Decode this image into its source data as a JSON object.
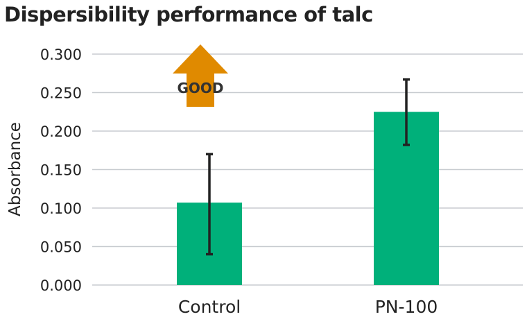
{
  "chart_data": {
    "type": "bar",
    "title": "Dispersibility performance of talc",
    "xlabel": "",
    "ylabel": "Absorbance",
    "categories": [
      "Control",
      "PN-100"
    ],
    "values": [
      0.107,
      0.225
    ],
    "error_low": [
      0.04,
      0.182
    ],
    "error_high": [
      0.17,
      0.267
    ],
    "ylim": [
      0,
      0.3
    ],
    "yticks": [
      "0.000",
      "0.050",
      "0.100",
      "0.150",
      "0.200",
      "0.250",
      "0.300"
    ],
    "grid": true,
    "colors": {
      "bar": "#00b07a",
      "grid": "#c8ccd0",
      "error": "#222222",
      "arrow": "#e08a00"
    },
    "annotation": {
      "text": "GOOD",
      "icon": "up-arrow-icon"
    }
  }
}
